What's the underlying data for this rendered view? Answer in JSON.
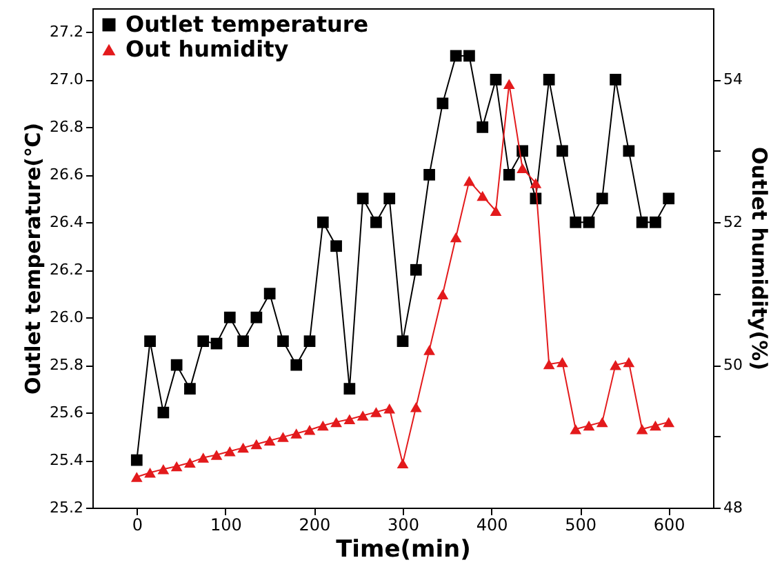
{
  "chart_data": {
    "type": "line",
    "xlabel": "Time(min)",
    "ylabel": "Outlet temperature(℃)",
    "y2label": "Outlet humidity(%)",
    "x": [
      0,
      15,
      30,
      45,
      60,
      75,
      90,
      105,
      120,
      135,
      150,
      165,
      180,
      195,
      210,
      225,
      240,
      255,
      270,
      285,
      300,
      315,
      330,
      345,
      360,
      375,
      390,
      405,
      420,
      435,
      450,
      465,
      480,
      495,
      510,
      525,
      540,
      555,
      570,
      585,
      600
    ],
    "xlim": [
      -50,
      650
    ],
    "xticks": [
      0,
      100,
      200,
      300,
      400,
      500,
      600
    ],
    "ylim": [
      25.2,
      27.3
    ],
    "yticks": [
      25.2,
      25.4,
      25.6,
      25.8,
      {
        "value": 26,
        "label": "26.0"
      },
      26.2,
      26.4,
      26.6,
      26.8,
      {
        "value": 27,
        "label": "27.0"
      },
      27.2
    ],
    "y2lim": [
      48,
      55
    ],
    "y2ticks": [
      48,
      {
        "value": 49,
        "label": null
      },
      50,
      {
        "value": 51,
        "label": null
      },
      52,
      {
        "value": 53,
        "label": null
      },
      54
    ],
    "series": [
      {
        "name": "Outlet temperature",
        "color": "#000000",
        "marker": "square",
        "values": [
          25.4,
          25.9,
          25.6,
          25.8,
          25.7,
          25.9,
          25.89,
          26.0,
          25.9,
          26.0,
          26.1,
          25.9,
          25.8,
          25.9,
          26.4,
          26.3,
          25.7,
          26.5,
          26.4,
          26.5,
          25.9,
          26.2,
          26.6,
          26.9,
          27.1,
          27.1,
          26.8,
          27.0,
          26.6,
          26.7,
          26.5,
          27.0,
          26.7,
          26.4,
          26.4,
          26.5,
          27.0,
          26.7,
          26.4,
          26.4,
          26.5
        ]
      },
      {
        "name": "Out humidity",
        "color": "#e31a1c",
        "marker": "triangle",
        "axis": "y2",
        "values": [
          48.43,
          48.49,
          48.54,
          48.58,
          48.63,
          48.7,
          48.74,
          48.79,
          48.84,
          48.89,
          48.94,
          48.99,
          49.04,
          49.09,
          49.15,
          49.2,
          49.24,
          49.29,
          49.34,
          49.39,
          48.62,
          49.41,
          50.21,
          50.99,
          51.79,
          52.58,
          52.37,
          52.16,
          53.94,
          52.76,
          52.55,
          50.01,
          50.04,
          49.1,
          49.15,
          49.2,
          50.0,
          50.04,
          49.1,
          49.15,
          49.2
        ]
      }
    ],
    "line_style": "solid",
    "grid": false,
    "legend": "top left"
  }
}
